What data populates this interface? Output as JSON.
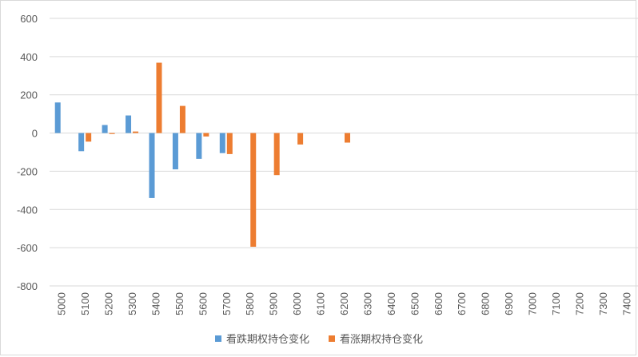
{
  "chart_data": {
    "type": "bar",
    "categories": [
      "5000",
      "5100",
      "5200",
      "5300",
      "5400",
      "5500",
      "5600",
      "5700",
      "5800",
      "5900",
      "6000",
      "6100",
      "6200",
      "6300",
      "6400",
      "6500",
      "6600",
      "6700",
      "6800",
      "6900",
      "7000",
      "7100",
      "7200",
      "7300",
      "7400"
    ],
    "series": [
      {
        "name": "看跌期权持仓变化",
        "color": "#5B9BD5",
        "values": [
          160,
          -95,
          42,
          92,
          -340,
          -190,
          -135,
          -105,
          0,
          0,
          0,
          0,
          0,
          0,
          0,
          0,
          0,
          0,
          0,
          0,
          0,
          0,
          0,
          0,
          0
        ]
      },
      {
        "name": "看涨期权持仓变化",
        "color": "#ED7D31",
        "values": [
          0,
          -45,
          -5,
          8,
          368,
          142,
          -18,
          -110,
          -595,
          -220,
          -60,
          0,
          -50,
          0,
          0,
          0,
          0,
          0,
          0,
          0,
          0,
          0,
          0,
          0,
          0
        ]
      }
    ],
    "yticks": [
      "600",
      "400",
      "200",
      "0",
      "-200",
      "-400",
      "-600",
      "-800"
    ],
    "ylim": [
      -800,
      600
    ],
    "grid": true,
    "legend_position": "bottom",
    "title": "",
    "xlabel": "",
    "ylabel": ""
  }
}
